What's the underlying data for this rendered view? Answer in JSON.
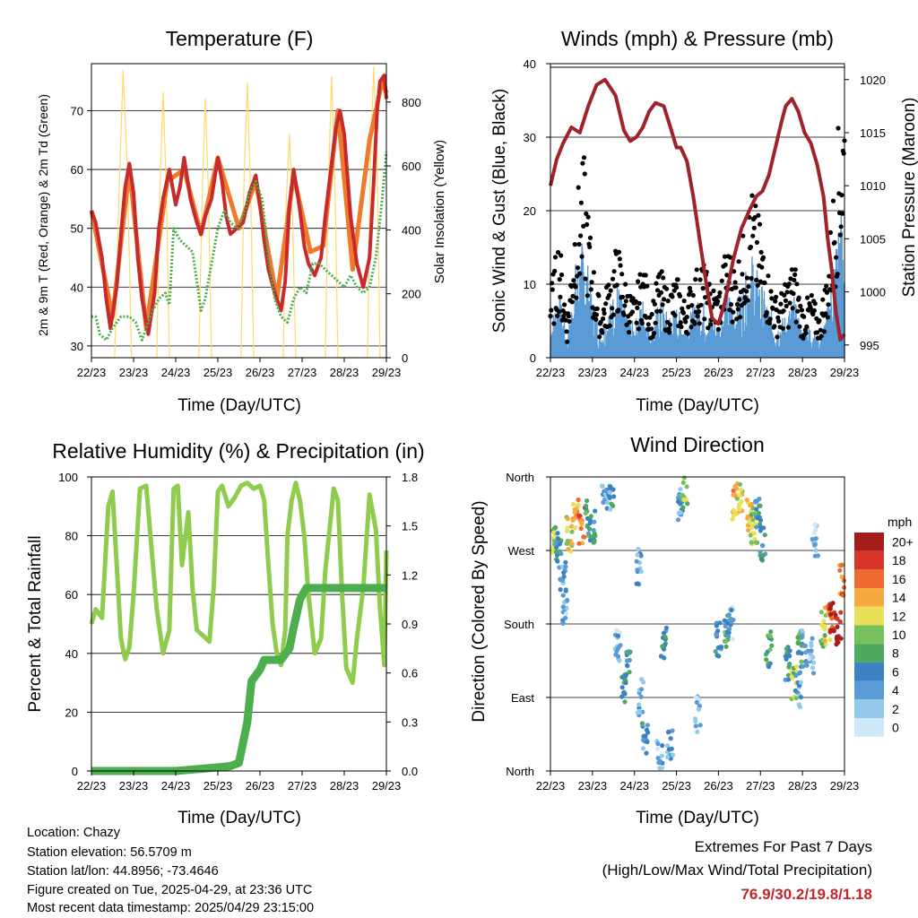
{
  "colors": {
    "temp_2m": "#c62a2a",
    "temp_9m": "#f07a2a",
    "dewpoint": "#4cae4c",
    "solar": "#ffd96a",
    "pressure": "#a0222a",
    "gust": "#000000",
    "wind": "#5a9ad5",
    "rh": "#8fcc4e",
    "precip": "#4cae4c",
    "extremes": "#c0272d"
  },
  "time_ticks": [
    "22/23",
    "23/23",
    "24/23",
    "25/23",
    "26/23",
    "27/23",
    "28/23",
    "29/23"
  ],
  "temperature_panel": {
    "title": "Temperature (F)",
    "xlabel": "Time (Day/UTC)",
    "ylabel_left": "2m & 9m T (Red, Orange) & 2m Td (Green)",
    "ylabel_right": "Solar Insolation (Yellow)",
    "left_ticks": [
      "30",
      "40",
      "50",
      "60",
      "70"
    ],
    "right_ticks": [
      "0",
      "200",
      "400",
      "600",
      "800"
    ]
  },
  "winds_panel": {
    "title": "Winds (mph) & Pressure (mb)",
    "xlabel": "Time (Day/UTC)",
    "ylabel_left": "Sonic Wind & Gust (Blue, Black)",
    "ylabel_right": "Station Pressure (Maroon)",
    "left_ticks": [
      "0",
      "10",
      "20",
      "30",
      "40"
    ],
    "right_ticks": [
      "995",
      "1000",
      "1005",
      "1010",
      "1015",
      "1020"
    ]
  },
  "humidity_panel": {
    "title": "Relative Humidity (%) & Precipitation (in)",
    "xlabel": "Time (Day/UTC)",
    "ylabel_left": "Percent & Total Rainfall",
    "left_ticks": [
      "0",
      "20",
      "40",
      "60",
      "80",
      "100"
    ],
    "right_ticks": [
      "0.0",
      "0.3",
      "0.6",
      "0.9",
      "1.2",
      "1.5",
      "1.8"
    ]
  },
  "direction_panel": {
    "title": "Wind Direction",
    "xlabel": "Time (Day/UTC)",
    "ylabel": "Direction (Colored By Speed)",
    "dir_ticks": [
      "North",
      "East",
      "South",
      "West",
      "North"
    ],
    "legend_title": "mph",
    "legend_labels": [
      "0",
      "2",
      "4",
      "6",
      "8",
      "10",
      "12",
      "14",
      "16",
      "18",
      "20+"
    ],
    "legend_colors": [
      "#cde9f8",
      "#93caec",
      "#5a9ad5",
      "#3b82c2",
      "#4caa5e",
      "#77c15c",
      "#e9e05a",
      "#f7a940",
      "#ef6a30",
      "#d7342a",
      "#a41c1c"
    ]
  },
  "footer": {
    "location": "Location: Chazy",
    "elevation": "Station elevation: 56.5709 m",
    "latlon": "Station lat/lon: 44.8956; -73.4646",
    "created": "Figure created on Tue, 2025-04-29, at 23:36 UTC",
    "recent": "Most recent data timestamp: 2025/04/29 23:15:00"
  },
  "extremes": {
    "title": "Extremes For Past 7 Days",
    "subtitle": "(High/Low/Max Wind/Total Precipitation)",
    "values": "76.9/30.2/19.8/1.18"
  },
  "chart_data": [
    {
      "type": "line",
      "title": "Temperature (F)",
      "xlabel": "Time (Day/UTC)",
      "ylabel": "2m & 9m T (Red, Orange) & 2m Td (Green)",
      "ylabel_right": "Solar Insolation (Yellow)",
      "x_unit": "days since 22/23 UTC",
      "ylim": [
        28,
        78
      ],
      "ylim_right": [
        0,
        920
      ],
      "series": [
        {
          "name": "2m T",
          "axis": "left",
          "x": [
            0,
            0.1,
            0.25,
            0.35,
            0.45,
            0.6,
            0.7,
            0.8,
            0.9,
            1.0,
            1.1,
            1.2,
            1.35,
            1.5,
            1.6,
            1.7,
            1.85,
            2.0,
            2.1,
            2.2,
            2.35,
            2.5,
            2.6,
            2.7,
            2.85,
            3.0,
            3.1,
            3.2,
            3.3,
            3.45,
            3.6,
            3.75,
            3.9,
            4.0,
            4.1,
            4.2,
            4.35,
            4.5,
            4.6,
            4.7,
            4.8,
            4.95,
            5.05,
            5.15,
            5.3,
            5.45,
            5.55,
            5.7,
            5.8,
            5.9,
            6.0,
            6.15,
            6.3,
            6.45,
            6.6,
            6.7,
            6.78,
            6.85,
            6.95,
            7.0
          ],
          "values": [
            53,
            51,
            45,
            38,
            33,
            40,
            49,
            57,
            61,
            56,
            45,
            38,
            32,
            39,
            50,
            55,
            60,
            54,
            57,
            62,
            55,
            51,
            49,
            52,
            55,
            62,
            58,
            52,
            49,
            50,
            51,
            56,
            59,
            54,
            48,
            43,
            39,
            36,
            41,
            54,
            60,
            53,
            47,
            44,
            42,
            45,
            52,
            61,
            67,
            70,
            66,
            52,
            44,
            40,
            45,
            58,
            70,
            75,
            76,
            72
          ]
        },
        {
          "name": "9m T",
          "axis": "left",
          "x": [
            0,
            0.5,
            0.9,
            1.3,
            1.8,
            2.2,
            2.6,
            3.0,
            3.5,
            3.9,
            4.4,
            4.8,
            5.2,
            5.5,
            5.85,
            6.2,
            6.6,
            6.9,
            7.0
          ],
          "values": [
            53,
            35,
            60,
            33,
            58,
            60,
            49,
            62,
            50,
            58,
            38,
            59,
            46,
            47,
            70,
            43,
            65,
            75,
            73
          ]
        },
        {
          "name": "2m Td",
          "axis": "left",
          "x": [
            0,
            0.1,
            0.2,
            0.35,
            0.5,
            0.7,
            0.9,
            1.05,
            1.2,
            1.3,
            1.45,
            1.6,
            1.75,
            1.85,
            1.95,
            2.1,
            2.25,
            2.4,
            2.6,
            2.7,
            2.8,
            3.0,
            3.15,
            3.3,
            3.45,
            3.6,
            3.75,
            3.9,
            4.05,
            4.2,
            4.35,
            4.5,
            4.65,
            4.8,
            4.95,
            5.1,
            5.25,
            5.4,
            5.55,
            5.7,
            5.85,
            6.0,
            6.15,
            6.3,
            6.45,
            6.6,
            6.75,
            6.9,
            7.0
          ],
          "values": [
            35,
            35,
            32,
            31,
            33,
            35,
            35,
            34,
            31,
            33,
            36,
            38,
            39,
            37,
            50,
            48,
            47,
            46,
            36,
            38,
            42,
            50,
            53,
            51,
            50,
            52,
            56,
            58,
            55,
            45,
            38,
            35,
            34,
            38,
            40,
            39,
            44,
            44,
            43,
            42,
            41,
            40,
            42,
            40,
            39,
            40,
            45,
            55,
            63
          ]
        },
        {
          "name": "Solar Insolation",
          "axis": "right",
          "x": [
            0,
            0.55,
            0.65,
            0.75,
            0.85,
            0.95,
            1.2,
            1.55,
            1.62,
            1.7,
            1.78,
            1.85,
            2.1,
            2.55,
            2.62,
            2.7,
            2.78,
            2.85,
            3.1,
            3.55,
            3.62,
            3.7,
            3.78,
            3.85,
            4.1,
            4.55,
            4.62,
            4.7,
            4.78,
            4.85,
            5.1,
            5.55,
            5.62,
            5.7,
            5.78,
            5.85,
            6.1,
            6.55,
            6.62,
            6.7,
            6.78,
            6.85,
            7.0
          ],
          "values": [
            0,
            0,
            500,
            900,
            600,
            0,
            0,
            0,
            500,
            830,
            520,
            0,
            0,
            0,
            460,
            810,
            500,
            0,
            0,
            0,
            550,
            860,
            500,
            0,
            0,
            0,
            480,
            700,
            400,
            0,
            0,
            0,
            520,
            880,
            540,
            0,
            0,
            0,
            600,
            910,
            620,
            0,
            0
          ]
        }
      ]
    },
    {
      "type": "line",
      "title": "Winds (mph) & Pressure (mb)",
      "xlabel": "Time (Day/UTC)",
      "ylabel": "Sonic Wind & Gust (Blue, Black)",
      "ylabel_right": "Station Pressure (Maroon)",
      "x_unit": "days since 22/23 UTC",
      "ylim": [
        0,
        40
      ],
      "ylim_right": [
        993.8,
        1021.5
      ],
      "series": [
        {
          "name": "Station Pressure",
          "axis": "right",
          "x": [
            0,
            0.15,
            0.3,
            0.5,
            0.7,
            0.9,
            1.1,
            1.3,
            1.55,
            1.75,
            1.9,
            2.05,
            2.2,
            2.35,
            2.5,
            2.7,
            2.85,
            3.0,
            3.1,
            3.25,
            3.4,
            3.55,
            3.7,
            3.85,
            4.0,
            4.15,
            4.35,
            4.55,
            4.75,
            4.9,
            5.05,
            5.2,
            5.35,
            5.5,
            5.6,
            5.75,
            5.9,
            6.05,
            6.2,
            6.35,
            6.5,
            6.6,
            6.7,
            6.8,
            6.9,
            7.0
          ],
          "values": [
            1010,
            1012.5,
            1014,
            1015.5,
            1015,
            1017.5,
            1019.5,
            1020,
            1018.5,
            1015.2,
            1014.2,
            1014.6,
            1015.5,
            1017,
            1017.8,
            1017.5,
            1015.6,
            1013.6,
            1013.6,
            1012.3,
            1009,
            1005,
            1001,
            997.5,
            997,
            999,
            1003,
            1006,
            1007.8,
            1009,
            1009.5,
            1011,
            1013.5,
            1016,
            1017.5,
            1018.2,
            1017,
            1015,
            1014,
            1012,
            1009,
            1005,
            1002,
            998,
            995.5,
            996
          ]
        },
        {
          "name": "Sonic Wind",
          "axis": "left",
          "x": [
            0,
            0.2,
            0.4,
            0.6,
            0.8,
            1.0,
            1.2,
            1.4,
            1.6,
            1.8,
            2.0,
            2.2,
            2.4,
            2.6,
            2.8,
            3.0,
            3.2,
            3.4,
            3.6,
            3.8,
            4.0,
            4.2,
            4.4,
            4.6,
            4.8,
            5.0,
            5.2,
            5.4,
            5.6,
            5.8,
            6.0,
            6.2,
            6.4,
            6.6,
            6.8,
            6.9,
            7.0
          ],
          "values": [
            4,
            8,
            2,
            11,
            14,
            7,
            3,
            6,
            9,
            5,
            4,
            7,
            3,
            7,
            5,
            6,
            4,
            6,
            7,
            5,
            4,
            8,
            6,
            9,
            12,
            9,
            6,
            4,
            5,
            7,
            3,
            4,
            2,
            6,
            14,
            18,
            15
          ]
        },
        {
          "name": "Gust",
          "axis": "left",
          "x": [
            0,
            0.2,
            0.4,
            0.6,
            0.8,
            1.0,
            1.2,
            1.4,
            1.6,
            1.8,
            2.0,
            2.2,
            2.4,
            2.6,
            2.8,
            3.0,
            3.2,
            3.4,
            3.6,
            3.8,
            4.0,
            4.2,
            4.4,
            4.6,
            4.8,
            5.0,
            5.2,
            5.4,
            5.6,
            5.8,
            6.0,
            6.2,
            6.4,
            6.6,
            6.8,
            6.9,
            7.0
          ],
          "values": [
            8,
            15,
            5,
            19,
            24,
            12,
            6,
            10,
            14,
            9,
            7,
            12,
            6,
            11,
            8,
            10,
            7,
            10,
            12,
            9,
            8,
            14,
            11,
            15,
            20,
            16,
            10,
            7,
            9,
            12,
            6,
            8,
            5,
            11,
            25,
            30,
            33
          ]
        }
      ]
    },
    {
      "type": "line",
      "title": "Relative Humidity (%) & Precipitation (in)",
      "xlabel": "Time (Day/UTC)",
      "ylabel": "Percent & Total Rainfall",
      "x_unit": "days since 22/23 UTC",
      "ylim": [
        0,
        100
      ],
      "ylim_right": [
        0,
        1.8
      ],
      "series": [
        {
          "name": "Relative Humidity",
          "axis": "left",
          "x": [
            0,
            0.1,
            0.25,
            0.4,
            0.5,
            0.6,
            0.7,
            0.8,
            0.9,
            1.0,
            1.15,
            1.3,
            1.4,
            1.55,
            1.7,
            1.85,
            1.95,
            2.05,
            2.15,
            2.3,
            2.4,
            2.5,
            2.65,
            2.8,
            2.9,
            3.0,
            3.1,
            3.25,
            3.4,
            3.55,
            3.7,
            3.85,
            4.0,
            4.1,
            4.2,
            4.3,
            4.4,
            4.5,
            4.6,
            4.65,
            4.75,
            4.85,
            4.95,
            5.05,
            5.15,
            5.3,
            5.45,
            5.55,
            5.65,
            5.75,
            5.85,
            5.95,
            6.05,
            6.2,
            6.3,
            6.45,
            6.6,
            6.75,
            6.85,
            6.95,
            7.0
          ],
          "values": [
            50,
            55,
            52,
            90,
            95,
            70,
            45,
            38,
            42,
            60,
            96,
            97,
            80,
            55,
            40,
            48,
            96,
            97,
            70,
            88,
            62,
            48,
            46,
            44,
            62,
            95,
            97,
            90,
            93,
            97,
            98,
            96,
            97,
            92,
            70,
            50,
            40,
            36,
            48,
            80,
            92,
            98,
            92,
            80,
            60,
            40,
            45,
            68,
            82,
            96,
            92,
            60,
            35,
            30,
            45,
            62,
            94,
            82,
            55,
            36,
            75
          ]
        },
        {
          "name": "Total Rainfall",
          "axis": "right",
          "x": [
            0,
            1.0,
            2.0,
            2.9,
            3.3,
            3.5,
            3.7,
            3.8,
            4.0,
            4.1,
            4.3,
            4.5,
            4.7,
            4.8,
            4.95,
            5.1,
            5.5,
            6.0,
            6.5,
            7.0
          ],
          "values": [
            0,
            0,
            0,
            0.02,
            0.03,
            0.05,
            0.3,
            0.55,
            0.62,
            0.68,
            0.68,
            0.68,
            0.75,
            0.88,
            1.05,
            1.12,
            1.12,
            1.12,
            1.12,
            1.12
          ]
        }
      ]
    },
    {
      "type": "scatter",
      "title": "Wind Direction",
      "xlabel": "Time (Day/UTC)",
      "ylabel": "Direction (Colored By Speed)",
      "x_unit": "days since 22/23 UTC",
      "y_unit": "compass direction, degrees (North at bottom = 0, East = 90, South = 180, West = 270, North at top = 360)",
      "ylim": [
        0,
        360
      ],
      "colorbar": {
        "label": "mph",
        "ticks": [
          "0",
          "2",
          "4",
          "6",
          "8",
          "10",
          "12",
          "14",
          "16",
          "18",
          "20+"
        ]
      },
      "x": [
        0.1,
        0.2,
        0.3,
        0.35,
        0.45,
        0.6,
        0.75,
        0.9,
        1.0,
        1.3,
        1.45,
        1.6,
        1.75,
        1.85,
        2.1,
        2.15,
        2.25,
        2.6,
        2.7,
        2.85,
        3.1,
        3.2,
        3.5,
        4.0,
        4.2,
        4.3,
        4.4,
        4.5,
        4.75,
        4.85,
        4.95,
        5.05,
        5.2,
        5.65,
        5.8,
        5.9,
        5.95,
        6.05,
        6.2,
        6.3,
        6.5,
        6.6,
        6.7,
        6.85,
        6.95
      ],
      "y": [
        280,
        270,
        240,
        200,
        290,
        320,
        300,
        310,
        300,
        330,
        340,
        150,
        100,
        130,
        250,
        90,
        40,
        20,
        160,
        30,
        330,
        340,
        70,
        160,
        170,
        180,
        330,
        340,
        310,
        300,
        320,
        280,
        150,
        130,
        110,
        100,
        150,
        150,
        140,
        280,
        175,
        180,
        185,
        175,
        230
      ],
      "values": [
        10,
        6,
        4,
        3,
        12,
        14,
        16,
        7,
        6,
        4,
        5,
        3,
        8,
        6,
        4,
        3,
        5,
        3,
        6,
        4,
        4,
        10,
        2,
        6,
        7,
        3,
        14,
        12,
        12,
        10,
        6,
        6,
        8,
        6,
        10,
        4,
        8,
        4,
        2,
        2,
        10,
        14,
        18,
        20,
        16
      ]
    }
  ]
}
